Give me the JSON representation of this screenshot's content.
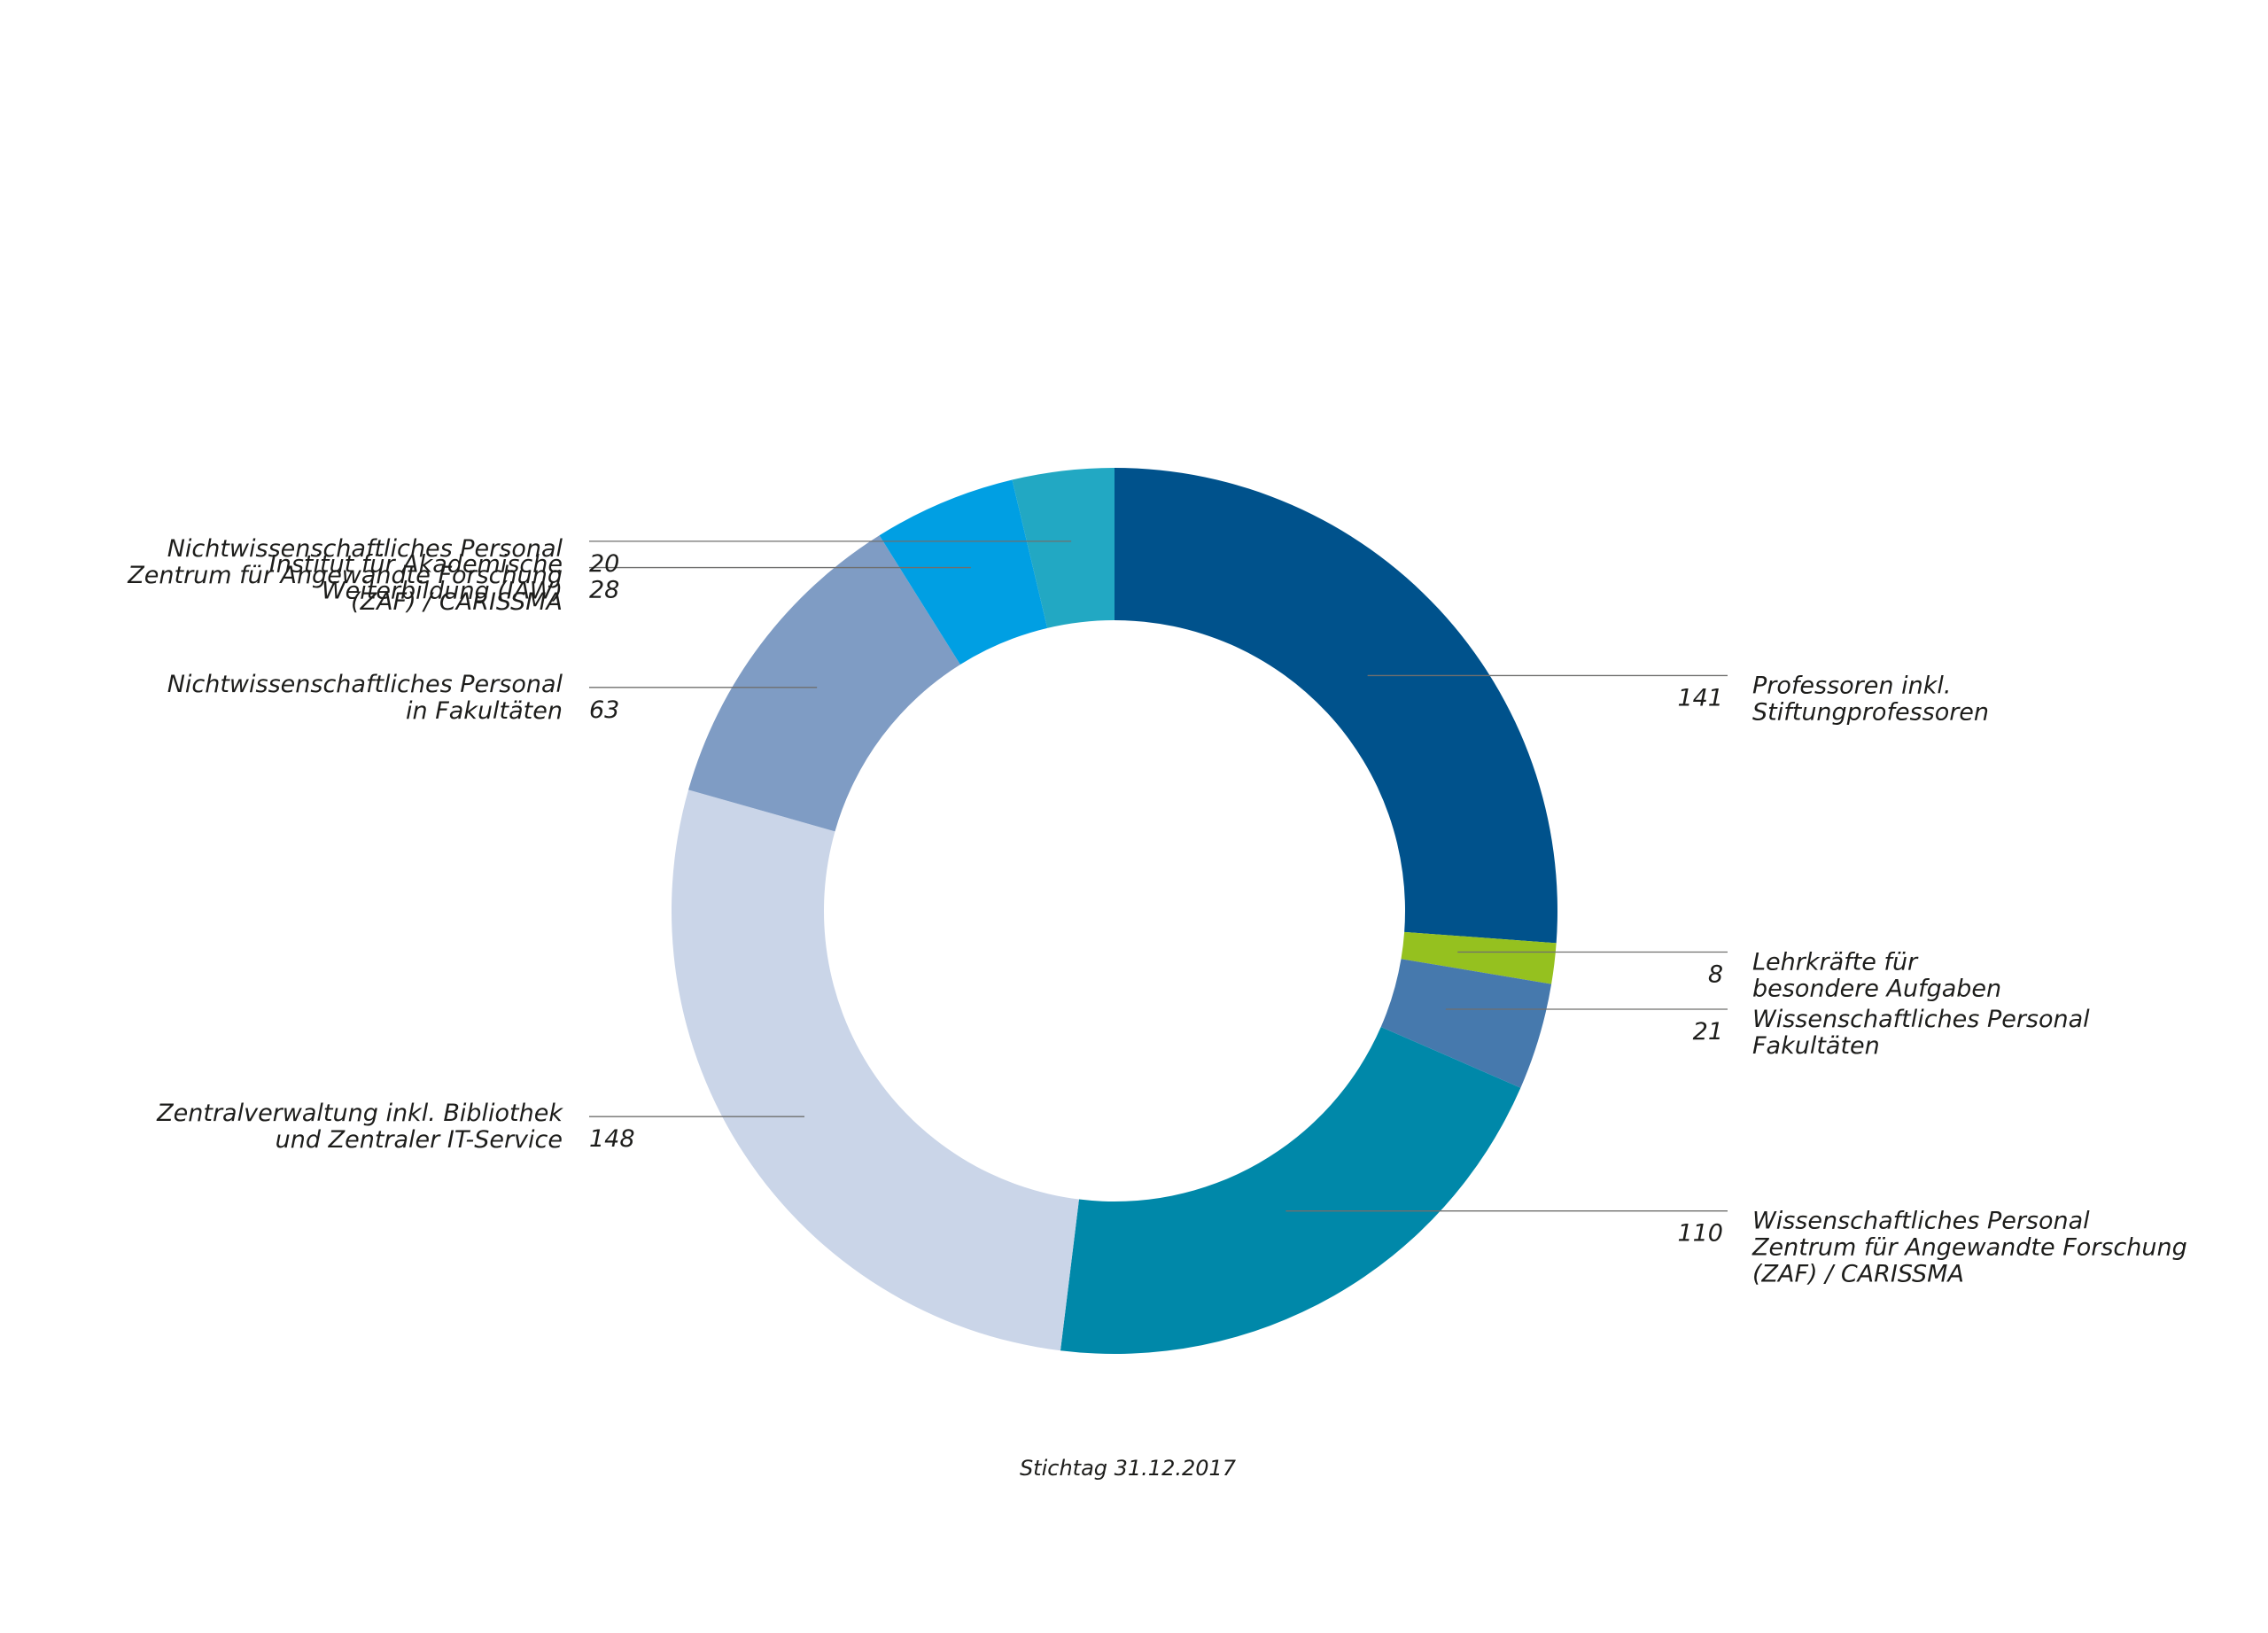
{
  "chart_data": {
    "type": "pie",
    "variant": "donut",
    "title": "",
    "footnote": "Stichtag 31.12.2017",
    "legend": "callout labels with leader lines",
    "slices": [
      {
        "value": 141,
        "value_label": "141",
        "label_lines": [
          "Professoren inkl.",
          "Stiftungprofessoren"
        ],
        "color": "#00528c",
        "side": "right"
      },
      {
        "value": 8,
        "value_label": "8",
        "label_lines": [
          "Lehrkräfte für",
          "besondere Aufgaben"
        ],
        "color": "#95c11f",
        "side": "right"
      },
      {
        "value": 21,
        "value_label": "21",
        "label_lines": [
          "Wissenschaftliches Personal",
          "Fakultäten"
        ],
        "color": "#4679ad",
        "side": "right"
      },
      {
        "value": 110,
        "value_label": "110",
        "label_lines": [
          "Wissenschaftliches Personal",
          "Zentrum für Angewandte Forschung",
          "(ZAF) / CARISSMA"
        ],
        "color": "#0088a9",
        "side": "right"
      },
      {
        "value": 148,
        "value_label": "148",
        "label_lines": [
          "Zentralverwaltung inkl. Bibliothek",
          "und Zentraler IT-Service"
        ],
        "color": "#cad5e8",
        "side": "left"
      },
      {
        "value": 63,
        "value_label": "63",
        "label_lines": [
          "Nichtwissenschaftliches Personal",
          "in Fakultäten"
        ],
        "color": "#7f9cc4",
        "side": "left"
      },
      {
        "value": 28,
        "value_label": "28",
        "label_lines": [
          "Institut für Akademische",
          "Weiterbildung (IAW)"
        ],
        "color": "#009fe3",
        "side": "left"
      },
      {
        "value": 20,
        "value_label": "20",
        "label_lines": [
          "Nichtwissenschaftliches Personal",
          "Zentrum für Angewandte Forschung",
          "(ZAF) / CARISSMA"
        ],
        "color": "#22a8c3",
        "side": "left"
      }
    ]
  }
}
